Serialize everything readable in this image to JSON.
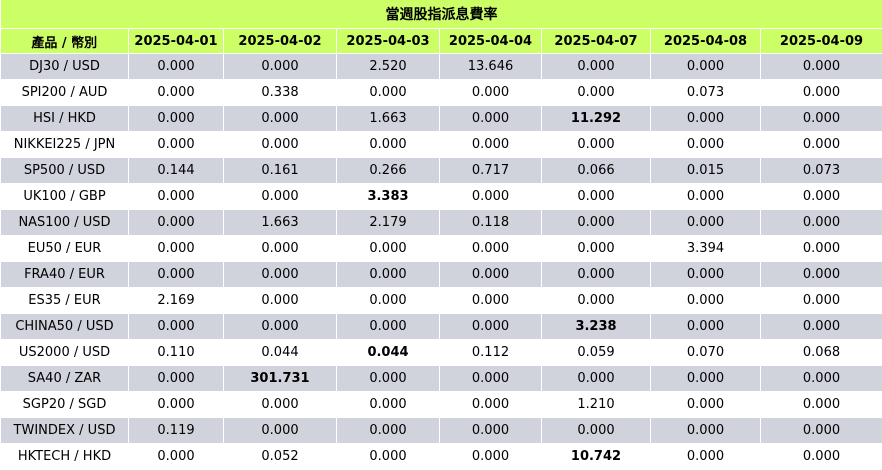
{
  "title": "當週股指派息費率",
  "columns": [
    "產品 / 幣別",
    "2025-04-01",
    "2025-04-02",
    "2025-04-03",
    "2025-04-04",
    "2025-04-07",
    "2025-04-08",
    "2025-04-09"
  ],
  "rows": [
    {
      "product": "DJ30 / USD",
      "values": [
        "0.000",
        "0.000",
        "2.520",
        "13.646",
        "0.000",
        "0.000",
        "0.000"
      ],
      "bold": []
    },
    {
      "product": "SPI200 / AUD",
      "values": [
        "0.000",
        "0.338",
        "0.000",
        "0.000",
        "0.000",
        "0.073",
        "0.000"
      ],
      "bold": []
    },
    {
      "product": "HSI / HKD",
      "values": [
        "0.000",
        "0.000",
        "1.663",
        "0.000",
        "11.292",
        "0.000",
        "0.000"
      ],
      "bold": [
        4
      ]
    },
    {
      "product": "NIKKEI225 / JPN",
      "values": [
        "0.000",
        "0.000",
        "0.000",
        "0.000",
        "0.000",
        "0.000",
        "0.000"
      ],
      "bold": []
    },
    {
      "product": "SP500 / USD",
      "values": [
        "0.144",
        "0.161",
        "0.266",
        "0.717",
        "0.066",
        "0.015",
        "0.073"
      ],
      "bold": []
    },
    {
      "product": "UK100 / GBP",
      "values": [
        "0.000",
        "0.000",
        "3.383",
        "0.000",
        "0.000",
        "0.000",
        "0.000"
      ],
      "bold": [
        2
      ]
    },
    {
      "product": "NAS100 / USD",
      "values": [
        "0.000",
        "1.663",
        "2.179",
        "0.118",
        "0.000",
        "0.000",
        "0.000"
      ],
      "bold": []
    },
    {
      "product": "EU50 / EUR",
      "values": [
        "0.000",
        "0.000",
        "0.000",
        "0.000",
        "0.000",
        "3.394",
        "0.000"
      ],
      "bold": []
    },
    {
      "product": "FRA40 / EUR",
      "values": [
        "0.000",
        "0.000",
        "0.000",
        "0.000",
        "0.000",
        "0.000",
        "0.000"
      ],
      "bold": []
    },
    {
      "product": "ES35 / EUR",
      "values": [
        "2.169",
        "0.000",
        "0.000",
        "0.000",
        "0.000",
        "0.000",
        "0.000"
      ],
      "bold": []
    },
    {
      "product": "CHINA50 / USD",
      "values": [
        "0.000",
        "0.000",
        "0.000",
        "0.000",
        "3.238",
        "0.000",
        "0.000"
      ],
      "bold": [
        4
      ]
    },
    {
      "product": "US2000 / USD",
      "values": [
        "0.110",
        "0.044",
        "0.044",
        "0.112",
        "0.059",
        "0.070",
        "0.068"
      ],
      "bold": [
        2
      ]
    },
    {
      "product": "SA40 / ZAR",
      "values": [
        "0.000",
        "301.731",
        "0.000",
        "0.000",
        "0.000",
        "0.000",
        "0.000"
      ],
      "bold": [
        1
      ]
    },
    {
      "product": "SGP20 / SGD",
      "values": [
        "0.000",
        "0.000",
        "0.000",
        "0.000",
        "1.210",
        "0.000",
        "0.000"
      ],
      "bold": []
    },
    {
      "product": "TWINDEX / USD",
      "values": [
        "0.119",
        "0.000",
        "0.000",
        "0.000",
        "0.000",
        "0.000",
        "0.000"
      ],
      "bold": []
    },
    {
      "product": "HKTECH / HKD",
      "values": [
        "0.000",
        "0.052",
        "0.000",
        "0.000",
        "10.742",
        "0.000",
        "0.000"
      ],
      "bold": [
        4
      ]
    }
  ]
}
